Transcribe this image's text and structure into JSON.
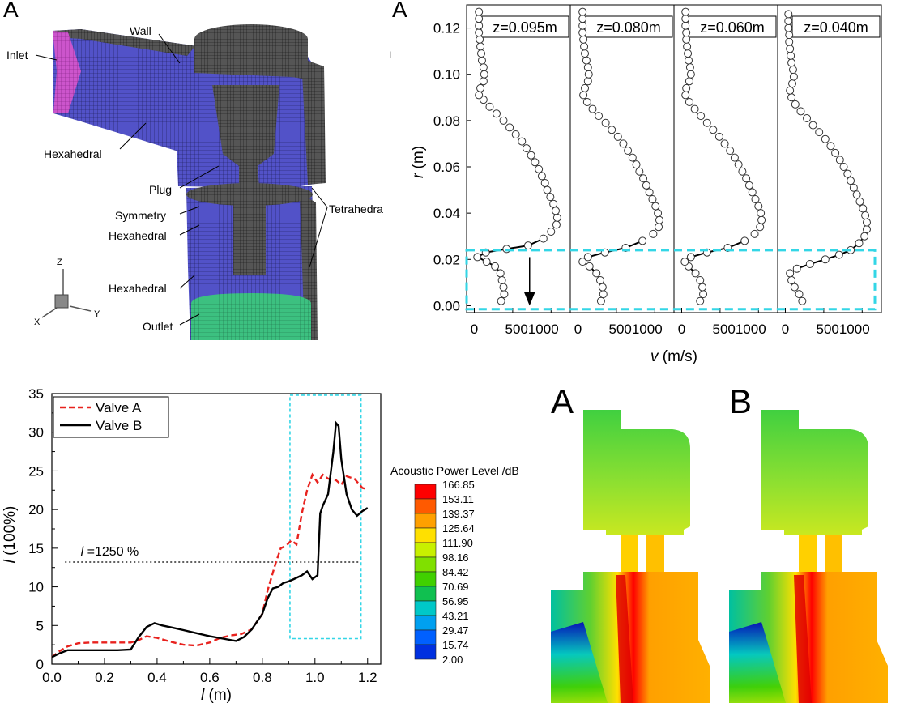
{
  "mesh": {
    "panel_letter": "A",
    "labels": {
      "inlet": "Inlet",
      "wall": "Wall",
      "hexahedral_top": "Hexahedral",
      "plug": "Plug",
      "tetrahedra": "Tetrahedra",
      "symmetry": "Symmetry",
      "hexahedral_mid": "Hexahedral",
      "hexahedral_low": "Hexahedral",
      "outlet": "Outlet"
    },
    "axes": {
      "z": "Z",
      "y": "Y",
      "x": "X"
    },
    "colors": {
      "inlet": "#cc44cc",
      "body": "#4d4dbf",
      "mesh": "#333333",
      "outlet": "#3cb878"
    }
  },
  "chart_data": [
    {
      "type": "scatter",
      "panel_letter": "A",
      "xlabel": "v (m/s)",
      "ylabel": "r (m)",
      "ylim": [
        -0.003,
        0.13
      ],
      "xlim": [
        -100,
        1250
      ],
      "y_ticks": [
        "0.12",
        "0.10",
        "0.08",
        "0.06",
        "0.04",
        "0.02",
        "0.00"
      ],
      "x_tick_labels": [
        "0",
        "5001000"
      ],
      "stray_mark": "I",
      "highlight_color": "#33d6e6",
      "series": [
        {
          "name": "z=0.095m",
          "points": [
            [
              350,
              0.002
            ],
            [
              390,
              0.005
            ],
            [
              380,
              0.008
            ],
            [
              360,
              0.011
            ],
            [
              340,
              0.014
            ],
            [
              270,
              0.017
            ],
            [
              160,
              0.019
            ],
            [
              40,
              0.021
            ],
            [
              150,
              0.023
            ],
            [
              420,
              0.0245
            ],
            [
              700,
              0.026
            ],
            [
              900,
              0.029
            ],
            [
              1000,
              0.032
            ],
            [
              1070,
              0.035
            ],
            [
              1080,
              0.038
            ],
            [
              1060,
              0.041
            ],
            [
              1030,
              0.044
            ],
            [
              990,
              0.047
            ],
            [
              950,
              0.05
            ],
            [
              920,
              0.053
            ],
            [
              880,
              0.056
            ],
            [
              840,
              0.059
            ],
            [
              790,
              0.062
            ],
            [
              740,
              0.065
            ],
            [
              680,
              0.068
            ],
            [
              620,
              0.071
            ],
            [
              540,
              0.074
            ],
            [
              460,
              0.077
            ],
            [
              380,
              0.08
            ],
            [
              290,
              0.083
            ],
            [
              200,
              0.086
            ],
            [
              120,
              0.089
            ],
            [
              60,
              0.091
            ],
            [
              80,
              0.094
            ],
            [
              120,
              0.097
            ],
            [
              130,
              0.1
            ],
            [
              120,
              0.103
            ],
            [
              100,
              0.106
            ],
            [
              90,
              0.109
            ],
            [
              80,
              0.112
            ],
            [
              70,
              0.115
            ],
            [
              60,
              0.118
            ],
            [
              60,
              0.121
            ],
            [
              60,
              0.124
            ],
            [
              60,
              0.127
            ]
          ]
        },
        {
          "name": "z=0.080m",
          "points": [
            [
              300,
              0.002
            ],
            [
              330,
              0.005
            ],
            [
              320,
              0.008
            ],
            [
              290,
              0.011
            ],
            [
              240,
              0.014
            ],
            [
              150,
              0.017
            ],
            [
              60,
              0.019
            ],
            [
              130,
              0.021
            ],
            [
              350,
              0.023
            ],
            [
              620,
              0.025
            ],
            [
              840,
              0.028
            ],
            [
              980,
              0.031
            ],
            [
              1050,
              0.034
            ],
            [
              1060,
              0.037
            ],
            [
              1040,
              0.04
            ],
            [
              1010,
              0.043
            ],
            [
              970,
              0.046
            ],
            [
              930,
              0.049
            ],
            [
              890,
              0.052
            ],
            [
              850,
              0.055
            ],
            [
              800,
              0.058
            ],
            [
              760,
              0.061
            ],
            [
              710,
              0.064
            ],
            [
              650,
              0.067
            ],
            [
              590,
              0.07
            ],
            [
              520,
              0.073
            ],
            [
              440,
              0.076
            ],
            [
              360,
              0.079
            ],
            [
              270,
              0.082
            ],
            [
              190,
              0.085
            ],
            [
              120,
              0.088
            ],
            [
              70,
              0.091
            ],
            [
              90,
              0.094
            ],
            [
              130,
              0.097
            ],
            [
              140,
              0.1
            ],
            [
              130,
              0.103
            ],
            [
              110,
              0.106
            ],
            [
              90,
              0.109
            ],
            [
              80,
              0.112
            ],
            [
              70,
              0.115
            ],
            [
              60,
              0.118
            ],
            [
              60,
              0.121
            ],
            [
              60,
              0.124
            ],
            [
              60,
              0.127
            ]
          ]
        },
        {
          "name": "z=0.060m",
          "points": [
            [
              240,
              0.002
            ],
            [
              280,
              0.005
            ],
            [
              270,
              0.008
            ],
            [
              240,
              0.011
            ],
            [
              180,
              0.014
            ],
            [
              90,
              0.017
            ],
            [
              40,
              0.019
            ],
            [
              120,
              0.021
            ],
            [
              330,
              0.023
            ],
            [
              600,
              0.025
            ],
            [
              820,
              0.028
            ],
            [
              950,
              0.031
            ],
            [
              1020,
              0.034
            ],
            [
              1040,
              0.037
            ],
            [
              1030,
              0.04
            ],
            [
              1000,
              0.043
            ],
            [
              960,
              0.046
            ],
            [
              920,
              0.049
            ],
            [
              880,
              0.052
            ],
            [
              840,
              0.055
            ],
            [
              790,
              0.058
            ],
            [
              740,
              0.061
            ],
            [
              690,
              0.064
            ],
            [
              630,
              0.067
            ],
            [
              560,
              0.07
            ],
            [
              490,
              0.073
            ],
            [
              410,
              0.076
            ],
            [
              330,
              0.079
            ],
            [
              250,
              0.082
            ],
            [
              170,
              0.085
            ],
            [
              100,
              0.088
            ],
            [
              50,
              0.091
            ],
            [
              60,
              0.094
            ],
            [
              100,
              0.097
            ],
            [
              120,
              0.1
            ],
            [
              110,
              0.103
            ],
            [
              90,
              0.106
            ],
            [
              80,
              0.109
            ],
            [
              70,
              0.112
            ],
            [
              60,
              0.115
            ],
            [
              60,
              0.118
            ],
            [
              50,
              0.121
            ],
            [
              50,
              0.124
            ],
            [
              50,
              0.127
            ]
          ]
        },
        {
          "name": "z=0.040m",
          "points": [
            [
              220,
              0.002
            ],
            [
              180,
              0.005
            ],
            [
              120,
              0.008
            ],
            [
              80,
              0.011
            ],
            [
              60,
              0.014
            ],
            [
              150,
              0.016
            ],
            [
              320,
              0.018
            ],
            [
              520,
              0.02
            ],
            [
              700,
              0.022
            ],
            [
              850,
              0.024
            ],
            [
              960,
              0.027
            ],
            [
              1030,
              0.03
            ],
            [
              1060,
              0.033
            ],
            [
              1060,
              0.036
            ],
            [
              1040,
              0.039
            ],
            [
              1010,
              0.042
            ],
            [
              970,
              0.045
            ],
            [
              930,
              0.048
            ],
            [
              890,
              0.051
            ],
            [
              850,
              0.054
            ],
            [
              810,
              0.057
            ],
            [
              760,
              0.06
            ],
            [
              710,
              0.063
            ],
            [
              650,
              0.066
            ],
            [
              590,
              0.069
            ],
            [
              520,
              0.072
            ],
            [
              440,
              0.075
            ],
            [
              360,
              0.078
            ],
            [
              280,
              0.081
            ],
            [
              200,
              0.084
            ],
            [
              130,
              0.087
            ],
            [
              80,
              0.09
            ],
            [
              60,
              0.093
            ],
            [
              90,
              0.096
            ],
            [
              110,
              0.099
            ],
            [
              100,
              0.102
            ],
            [
              80,
              0.105
            ],
            [
              70,
              0.108
            ],
            [
              60,
              0.111
            ],
            [
              50,
              0.114
            ],
            [
              50,
              0.117
            ],
            [
              40,
              0.12
            ],
            [
              40,
              0.123
            ],
            [
              40,
              0.126
            ]
          ]
        }
      ]
    },
    {
      "type": "line",
      "xlabel": "l (m)",
      "ylabel": "l (100%)",
      "xlim": [
        0.0,
        1.25
      ],
      "ylim": [
        0,
        35
      ],
      "x_ticks": [
        0.0,
        0.2,
        0.4,
        0.6,
        0.8,
        1.0,
        1.2
      ],
      "y_ticks": [
        0,
        5,
        10,
        15,
        20,
        25,
        30,
        35
      ],
      "x_tick_labels": [
        "0.0",
        "0.2",
        "0.4",
        "0.6",
        "0.8",
        "1.0",
        "1.2"
      ],
      "y_tick_labels": [
        "0",
        "5",
        "10",
        "15",
        "20",
        "25",
        "30",
        "35"
      ],
      "annotation": {
        "text": "l =1250 %",
        "y": 13.2
      },
      "highlight": {
        "x": [
          0.905,
          1.175
        ],
        "y": [
          3.3,
          34.8
        ],
        "color": "#33d6e6"
      },
      "series": [
        {
          "name": "Valve A",
          "color": "#e8221e",
          "dashed": true,
          "x": [
            0.0,
            0.03,
            0.06,
            0.1,
            0.15,
            0.2,
            0.25,
            0.3,
            0.33,
            0.36,
            0.4,
            0.45,
            0.5,
            0.55,
            0.6,
            0.64,
            0.68,
            0.72,
            0.76,
            0.8,
            0.82,
            0.85,
            0.87,
            0.89,
            0.91,
            0.93,
            0.95,
            0.97,
            0.99,
            1.01,
            1.03,
            1.05,
            1.08,
            1.1,
            1.12,
            1.15,
            1.18,
            1.2
          ],
          "values": [
            0.9,
            1.7,
            2.3,
            2.7,
            2.8,
            2.8,
            2.8,
            2.8,
            3.1,
            3.6,
            3.4,
            2.9,
            2.5,
            2.4,
            2.8,
            3.4,
            3.7,
            3.9,
            4.5,
            6.5,
            9.5,
            13.0,
            15.0,
            15.3,
            16.0,
            15.5,
            19.5,
            22.5,
            24.5,
            23.5,
            24.5,
            24.0,
            23.8,
            23.2,
            24.3,
            24.0,
            22.8,
            22.6
          ]
        },
        {
          "name": "Valve B",
          "color": "#000000",
          "dashed": false,
          "x": [
            0.0,
            0.03,
            0.06,
            0.1,
            0.15,
            0.2,
            0.25,
            0.3,
            0.33,
            0.36,
            0.39,
            0.42,
            0.46,
            0.5,
            0.55,
            0.6,
            0.65,
            0.7,
            0.73,
            0.76,
            0.78,
            0.8,
            0.82,
            0.84,
            0.86,
            0.88,
            0.9,
            0.92,
            0.95,
            0.97,
            0.99,
            1.01,
            1.02,
            1.03,
            1.05,
            1.07,
            1.08,
            1.09,
            1.1,
            1.12,
            1.14,
            1.16,
            1.18,
            1.2
          ],
          "values": [
            0.9,
            1.4,
            1.8,
            1.8,
            1.8,
            1.8,
            1.8,
            1.9,
            3.5,
            4.8,
            5.3,
            5.0,
            4.7,
            4.4,
            4.0,
            3.6,
            3.3,
            3.0,
            3.5,
            4.5,
            5.5,
            6.5,
            8.5,
            9.8,
            10.0,
            10.5,
            10.7,
            11.0,
            11.5,
            12.0,
            11.0,
            11.5,
            19.5,
            20.5,
            22.0,
            27.5,
            31.2,
            30.8,
            26.5,
            22.0,
            20.0,
            19.2,
            19.8,
            20.2
          ]
        }
      ]
    },
    {
      "type": "heatmap",
      "title": "Acoustic Power Level /dB",
      "color_levels": [
        "166.85",
        "153.11",
        "139.37",
        "125.64",
        "111.90",
        "98.16",
        "84.42",
        "70.69",
        "56.95",
        "43.21",
        "29.47",
        "15.74",
        "2.00"
      ],
      "level_colors": [
        "#ff0000",
        "#ff5a00",
        "#ffa000",
        "#ffe000",
        "#c8f000",
        "#80e000",
        "#40d000",
        "#10c050",
        "#00c8c8",
        "#00a0f0",
        "#0060ff",
        "#0030e0",
        "#0000c0"
      ],
      "fields": [
        {
          "panel_letter": "A"
        },
        {
          "panel_letter": "B"
        }
      ]
    }
  ]
}
